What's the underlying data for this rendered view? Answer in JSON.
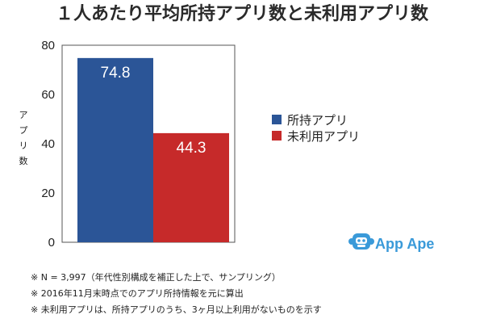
{
  "chart_data": {
    "type": "bar",
    "title": "１人あたり平均所持アプリ数と未利用アプリ数",
    "ylabel": "アプリ数",
    "ylim": [
      0,
      80
    ],
    "yticks": [
      0,
      20,
      40,
      60,
      80
    ],
    "grid": false,
    "legend_position": "right",
    "series": [
      {
        "name": "所持アプリ",
        "value": 74.8,
        "color": "#2b5597"
      },
      {
        "name": "未利用アプリ",
        "value": 44.3,
        "color": "#c62a2a"
      }
    ]
  },
  "brand": {
    "name": "App Ape",
    "color": "#3a9ad9"
  },
  "footnotes": [
    "※ N = 3,997（年代性別構成を補正した上で、サンプリング）",
    "※ 2016年11月末時点でのアプリ所持情報を元に算出",
    "※ 未利用アプリは、所持アプリのうち、3ヶ月以上利用がないものを示す"
  ]
}
